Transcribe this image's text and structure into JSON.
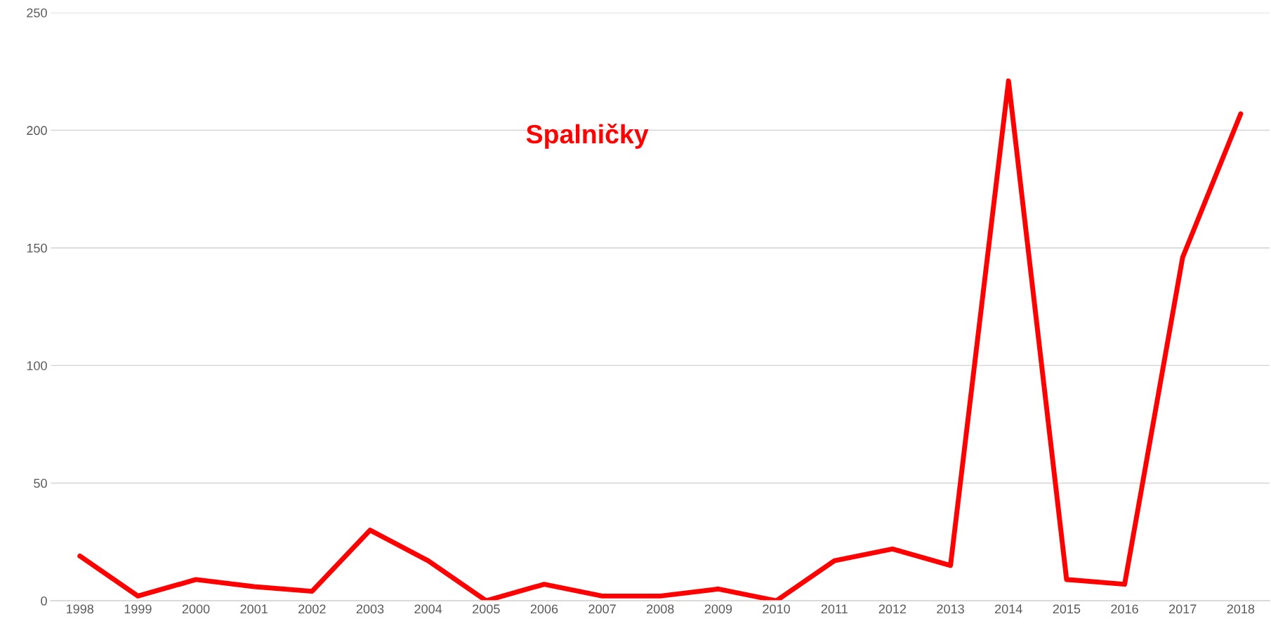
{
  "chart_data": {
    "type": "line",
    "title": "Spalničky",
    "categories": [
      "1998",
      "1999",
      "2000",
      "2001",
      "2002",
      "2003",
      "2004",
      "2005",
      "2006",
      "2007",
      "2008",
      "2009",
      "2010",
      "2011",
      "2012",
      "2013",
      "2014",
      "2015",
      "2016",
      "2017",
      "2018"
    ],
    "series": [
      {
        "color": "#ff0000",
        "values": [
          19,
          2,
          9,
          6,
          4,
          30,
          17,
          0,
          7,
          2,
          2,
          5,
          0,
          17,
          22,
          15,
          221,
          9,
          7,
          146,
          207
        ]
      }
    ],
    "ylim": [
      0,
      250
    ],
    "yticks": [
      0,
      50,
      100,
      150,
      200,
      250
    ],
    "grid": "y",
    "legend": false,
    "marker": "none",
    "line_style": "solid"
  }
}
